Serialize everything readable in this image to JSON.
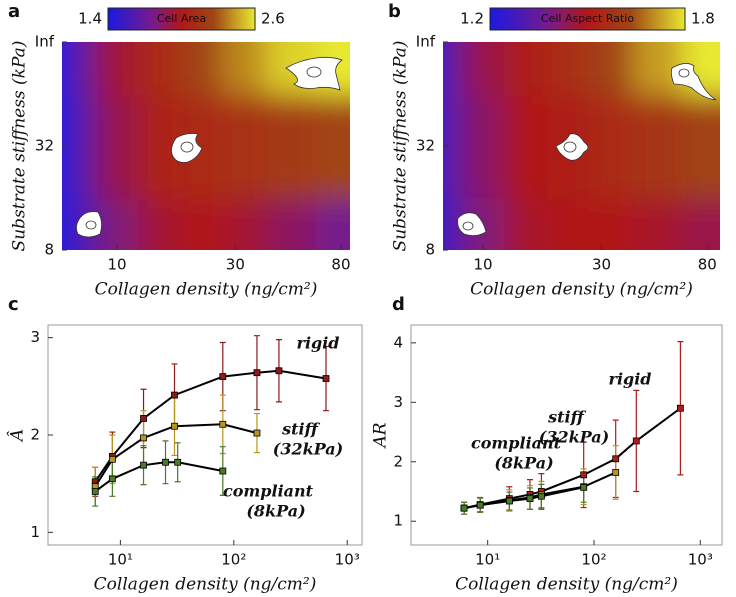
{
  "chart_data": [
    {
      "type": "heatmap",
      "panel": "a",
      "x_label": "Collagen density (ng/cm²)",
      "y_label": "Substrate stiffness (kPa)",
      "xlog": true,
      "xlim": [
        6,
        87
      ],
      "xticks": [
        10,
        30,
        80
      ],
      "ylim": [
        0,
        2
      ],
      "yticks": [
        {
          "value": 0,
          "label": "8"
        },
        {
          "value": 1,
          "label": "32"
        },
        {
          "value": 2,
          "label": "Inf"
        }
      ],
      "x": [
        6,
        7,
        10,
        15,
        22,
        32,
        50,
        80
      ],
      "y": [
        0,
        1,
        2
      ],
      "z": [
        [
          1.4,
          1.6,
          1.8,
          1.95,
          2.0,
          1.95,
          1.85,
          1.75
        ],
        [
          1.4,
          1.65,
          1.9,
          2.05,
          2.1,
          2.15,
          2.2,
          2.25
        ],
        [
          1.4,
          1.7,
          1.95,
          2.1,
          2.25,
          2.4,
          2.55,
          2.6
        ]
      ],
      "colorbar_label": "Cell Area",
      "clim": [
        1.4,
        2.6
      ],
      "cticks": [
        1.4,
        2.6
      ]
    },
    {
      "type": "heatmap",
      "panel": "b",
      "x_label": "Collagen density (ng/cm²)",
      "y_label": "Substrate stiffness (kPa)",
      "xlog": true,
      "xlim": [
        6.9,
        90
      ],
      "xticks": [
        10,
        30,
        80
      ],
      "ylim": [
        0,
        2
      ],
      "yticks": [
        {
          "value": 0,
          "label": "8"
        },
        {
          "value": 1,
          "label": "32"
        },
        {
          "value": 2,
          "label": "Inf"
        }
      ],
      "x": [
        6,
        7,
        10,
        15,
        22,
        32,
        50,
        80
      ],
      "y": [
        0,
        1,
        2
      ],
      "z": [
        [
          1.2,
          1.3,
          1.4,
          1.48,
          1.5,
          1.5,
          1.48,
          1.45
        ],
        [
          1.2,
          1.32,
          1.42,
          1.5,
          1.52,
          1.55,
          1.58,
          1.62
        ],
        [
          1.2,
          1.33,
          1.45,
          1.52,
          1.56,
          1.62,
          1.72,
          1.8
        ]
      ],
      "colorbar_label": "Cell Aspect Ratio",
      "clim": [
        1.2,
        1.8
      ],
      "cticks": [
        1.2,
        1.8
      ]
    },
    {
      "type": "errorline",
      "panel": "c",
      "x_label": "Collagen density (ng/cm²)",
      "y_label": "Â",
      "xlog": true,
      "xlim": [
        2.3,
        1350
      ],
      "xticks": [
        {
          "value": 10,
          "label": "10¹"
        },
        {
          "value": 100,
          "label": "10²"
        },
        {
          "value": 1000,
          "label": "10³"
        }
      ],
      "ylim": [
        0.87,
        3.13
      ],
      "yticks": [
        1,
        2,
        3
      ],
      "series": [
        {
          "name": "rigid",
          "color": "#8b1a1a",
          "x": [
            6,
            8.5,
            16,
            30,
            80,
            160,
            250,
            650
          ],
          "values": [
            1.52,
            1.78,
            2.17,
            2.41,
            2.6,
            2.64,
            2.66,
            2.58
          ],
          "errors": [
            0.15,
            0.25,
            0.3,
            0.32,
            0.35,
            0.38,
            0.32,
            0.33
          ]
        },
        {
          "name": "stiff",
          "note": "(32kPa)",
          "color": "#b8961e",
          "x": [
            6,
            8.5,
            16,
            30,
            80,
            160
          ],
          "values": [
            1.47,
            1.75,
            1.97,
            2.09,
            2.11,
            2.02
          ],
          "errors": [
            0.2,
            0.25,
            0.28,
            0.3,
            0.3,
            0.2
          ]
        },
        {
          "name": "compliant",
          "note": "(8kPa)",
          "color": "#4a7a2a",
          "x": [
            6,
            8.5,
            16,
            25,
            32,
            80
          ],
          "values": [
            1.42,
            1.55,
            1.69,
            1.72,
            1.72,
            1.63
          ],
          "errors": [
            0.15,
            0.18,
            0.2,
            0.22,
            0.2,
            0.25
          ]
        }
      ]
    },
    {
      "type": "errorline",
      "panel": "d",
      "x_label": "Collagen density (ng/cm²)",
      "y_label": "AR",
      "xlog": true,
      "xlim": [
        1.9,
        1600
      ],
      "xticks": [
        {
          "value": 10,
          "label": "10¹"
        },
        {
          "value": 100,
          "label": "10²"
        },
        {
          "value": 1000,
          "label": "10³"
        }
      ],
      "ylim": [
        0.6,
        4.3
      ],
      "yticks": [
        1,
        2,
        3,
        4
      ],
      "series": [
        {
          "name": "rigid",
          "color": "#b01c1c",
          "x": [
            6,
            8.5,
            16,
            25,
            32,
            80,
            160,
            250,
            650
          ],
          "values": [
            1.22,
            1.28,
            1.38,
            1.45,
            1.5,
            1.78,
            2.05,
            2.35,
            2.9
          ],
          "errors": [
            0.1,
            0.12,
            0.2,
            0.25,
            0.3,
            0.55,
            0.65,
            0.85,
            1.12
          ]
        },
        {
          "name": "stiff",
          "note": "(32kPa)",
          "color": "#b8961e",
          "x": [
            6,
            8.5,
            16,
            25,
            32,
            80,
            160
          ],
          "values": [
            1.22,
            1.27,
            1.35,
            1.4,
            1.45,
            1.58,
            1.82
          ],
          "errors": [
            0.1,
            0.12,
            0.18,
            0.2,
            0.22,
            0.3,
            0.45
          ]
        },
        {
          "name": "compliant",
          "note": "(8kPa)",
          "color": "#4a7a2a",
          "x": [
            6,
            8.5,
            16,
            25,
            32,
            80
          ],
          "values": [
            1.22,
            1.27,
            1.34,
            1.38,
            1.42,
            1.57
          ],
          "errors": [
            0.1,
            0.12,
            0.15,
            0.18,
            0.2,
            0.25
          ]
        }
      ]
    }
  ]
}
